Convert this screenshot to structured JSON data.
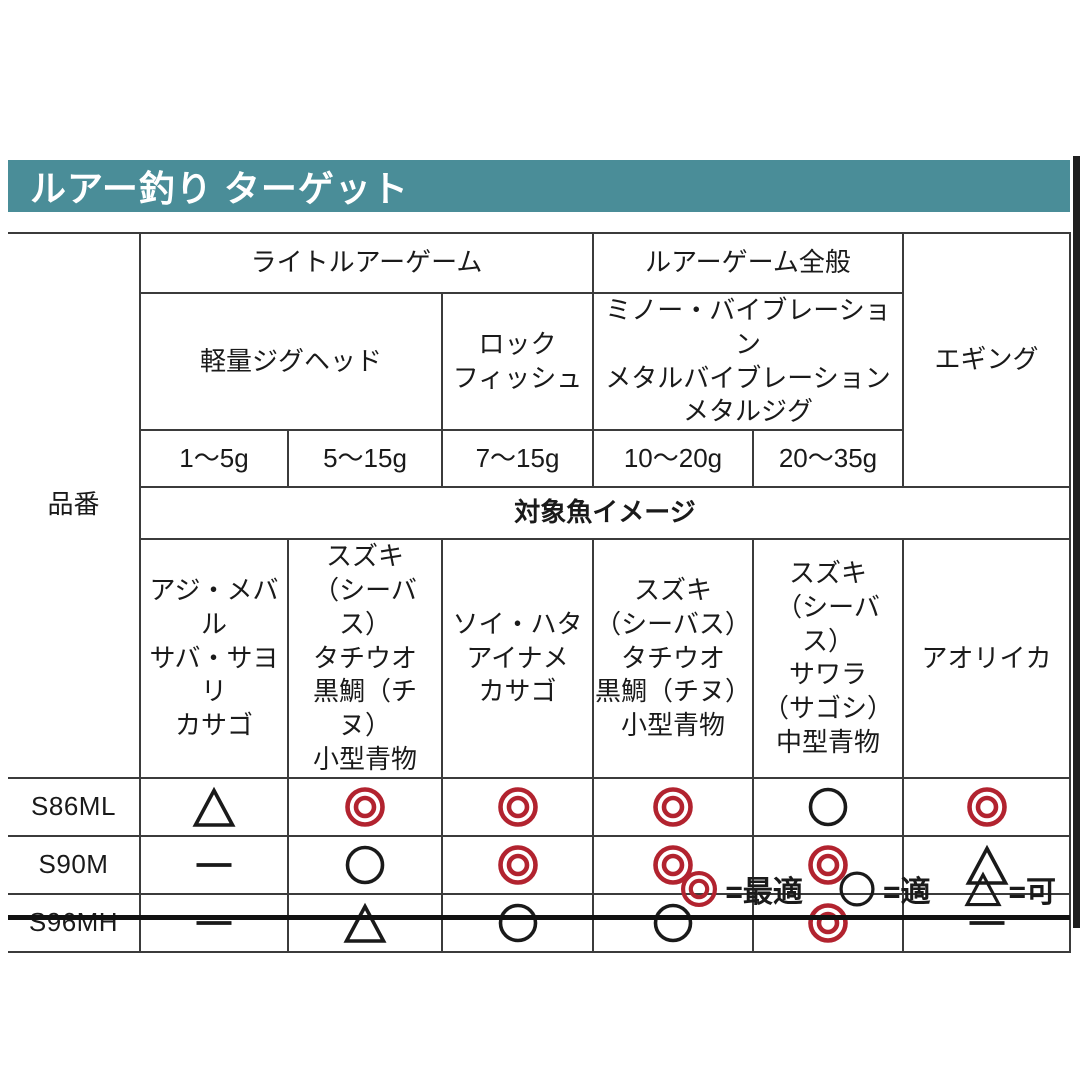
{
  "title": "ルアー釣り ターゲット",
  "colors": {
    "title_bar": "#4a8d98",
    "header_gray": "#d6d6d6",
    "target_row_bg": "#bdcfd4",
    "target_row_text": "#1e7a80",
    "border": "#3b3b3b",
    "thick_border": "#111111",
    "best_symbol": "#b2232f",
    "ink": "#1a1a1a"
  },
  "table": {
    "part_number_label": "品番",
    "group_headers": [
      {
        "label": "ライトルアーゲーム"
      },
      {
        "label": "ルアーゲーム全般"
      },
      {
        "label": "エギング"
      }
    ],
    "sub_headers": [
      {
        "label": "軽量ジグヘッド"
      },
      {
        "label": "ロック\nフィッシュ"
      },
      {
        "label": "ミノー・バイブレーション\nメタルバイブレーション\nメタルジグ"
      }
    ],
    "weights": [
      "1〜5g",
      "5〜15g",
      "7〜15g",
      "10〜20g",
      "20〜35g"
    ],
    "target_fish_header": "対象魚イメージ",
    "fish_columns": [
      "アジ・メバル\nサバ・サヨリ\nカサゴ",
      "スズキ\n（シーバス）\nタチウオ\n黒鯛（チヌ）\n小型青物",
      "ソイ・ハタ\nアイナメ\nカサゴ",
      "スズキ\n（シーバス）\nタチウオ\n黒鯛（チヌ）\n小型青物",
      "スズキ\n（シーバス）\nサワラ\n（サゴシ）\n中型青物",
      "アオリイカ"
    ],
    "rows": [
      {
        "model": "S86ML",
        "ratings": [
          "ok",
          "best",
          "best",
          "best",
          "good",
          "best"
        ]
      },
      {
        "model": "S90M",
        "ratings": [
          "none",
          "good",
          "best",
          "best",
          "best",
          "ok"
        ]
      },
      {
        "model": "S96MH",
        "ratings": [
          "none",
          "ok",
          "good",
          "good",
          "best",
          "none"
        ]
      }
    ]
  },
  "legend": {
    "items": [
      {
        "symbol": "best",
        "label": "=最適"
      },
      {
        "symbol": "good",
        "label": "=適"
      },
      {
        "symbol": "ok",
        "label": "=可"
      }
    ]
  },
  "symbols": {
    "best": "double-circle-icon",
    "good": "circle-icon",
    "ok": "triangle-icon",
    "none": "dash-icon"
  }
}
